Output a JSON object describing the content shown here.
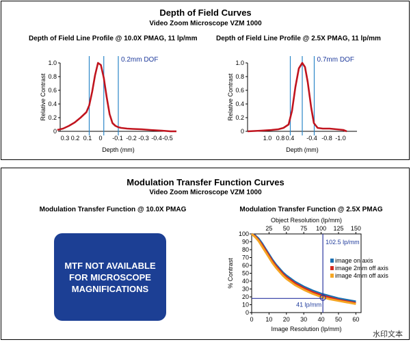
{
  "top": {
    "title": "Depth of Field Curves",
    "subtitle": "Video Zoom Microscope VZM 1000"
  },
  "bottom": {
    "title": "Modulation Transfer Function Curves",
    "subtitle": "Video Zoom Microscope VZM 1000"
  },
  "mtf_message": "MTF NOT AVAILABLE FOR MICROSCOPE MAGNIFICATIONS",
  "watermark": "水印文本",
  "colors": {
    "dof_curve": "#c0141e",
    "dof_lines": "#2a86c8",
    "box": "#1c3f94",
    "marker": "#2a35a0"
  },
  "chart_data": [
    {
      "type": "line",
      "title": "Depth of Field Line Profile @ 10.0X PMAG, 11 lp/mm",
      "xlabel": "Depth (mm)",
      "ylabel": "Relative Contrast",
      "x_ticks": [
        "0.3",
        "0.2",
        "0.1",
        "0",
        "-0.1",
        "-0.2",
        "-0.3",
        "-0.4",
        "-0.5"
      ],
      "y_ticks": [
        "0",
        "0.2",
        "0.4",
        "0.6",
        "0.8",
        "1.0"
      ],
      "xlim": [
        0.3,
        -0.5
      ],
      "ylim": [
        0,
        1.0
      ],
      "annotation": "0.2mm DOF",
      "dof_lines_x": [
        0.1,
        0.0,
        -0.1
      ],
      "series": [
        {
          "x": [
            0.32,
            0.28,
            0.24,
            0.2,
            0.16,
            0.12,
            0.1,
            0.08,
            0.06,
            0.04,
            0.02,
            0.0,
            -0.02,
            -0.04,
            -0.06,
            -0.08,
            -0.1,
            -0.12,
            -0.16,
            -0.2,
            -0.26,
            -0.32,
            -0.4,
            -0.46,
            -0.5
          ],
          "y": [
            0.02,
            0.04,
            0.08,
            0.13,
            0.2,
            0.28,
            0.38,
            0.58,
            0.82,
            1.0,
            0.97,
            0.78,
            0.5,
            0.25,
            0.12,
            0.08,
            0.06,
            0.05,
            0.04,
            0.035,
            0.03,
            0.02,
            0.01,
            0.0,
            0.0
          ]
        }
      ]
    },
    {
      "type": "line",
      "title": "Depth of Field Line Profile @ 2.5X PMAG, 11 lp/mm",
      "xlabel": "Depth (mm)",
      "ylabel": "Relative Contrast",
      "x_ticks": [
        "1.0",
        "0.8",
        "0.4",
        "-0.4",
        "-0.8",
        "-1.0"
      ],
      "y_ticks": [
        "0",
        "0.2",
        "0.4",
        "0.6",
        "0.8",
        "1.0"
      ],
      "xlim": [
        1.6,
        -1.6
      ],
      "ylim": [
        0,
        1.0
      ],
      "annotation": "0.7mm DOF",
      "dof_lines_x": [
        0.35,
        0.0,
        -0.35
      ],
      "series": [
        {
          "x": [
            1.6,
            1.2,
            0.9,
            0.7,
            0.55,
            0.4,
            0.3,
            0.2,
            0.1,
            0.0,
            -0.08,
            -0.16,
            -0.26,
            -0.34,
            -0.45,
            -0.6,
            -0.8,
            -1.0,
            -1.2,
            -1.3
          ],
          "y": [
            0.0,
            0.01,
            0.02,
            0.03,
            0.05,
            0.1,
            0.3,
            0.65,
            0.92,
            1.0,
            0.94,
            0.72,
            0.35,
            0.12,
            0.05,
            0.04,
            0.04,
            0.03,
            0.02,
            0.0
          ]
        }
      ]
    },
    {
      "type": "line",
      "title": "Modulation Transfer Function @ 2.5X PMAG",
      "xlabel": "Image Resolution (lp/mm)",
      "ylabel": "% Contrast",
      "x2label": "Object Resolution (lp/mm)",
      "x_ticks": [
        "0",
        "10",
        "20",
        "30",
        "40",
        "50",
        "60"
      ],
      "x2_ticks": [
        "25",
        "50",
        "75",
        "100",
        "125",
        "150"
      ],
      "y_ticks": [
        "0",
        "10",
        "20",
        "30",
        "40",
        "50",
        "60",
        "70",
        "80",
        "90",
        "100"
      ],
      "xlim": [
        0,
        63
      ],
      "ylim": [
        0,
        100
      ],
      "legend_position": "right",
      "annotations": {
        "top": "102.5 lp/mm",
        "bottom": "41 lp/mm"
      },
      "marker": {
        "x": 41,
        "y": 19
      },
      "series": [
        {
          "name": "image on axis",
          "color": "#1a6fb0",
          "x": [
            0,
            2,
            4,
            6,
            8,
            10,
            12,
            14,
            16,
            18,
            20,
            25,
            30,
            35,
            40,
            45,
            50,
            55,
            60
          ],
          "y": [
            100,
            98,
            94,
            88,
            81,
            74,
            67,
            61,
            56,
            51,
            47,
            39,
            33,
            28,
            24,
            21,
            18,
            16,
            14
          ]
        },
        {
          "name": "image 2mm off axis",
          "color": "#d62a1e",
          "x": [
            0,
            2,
            4,
            6,
            8,
            10,
            12,
            14,
            16,
            18,
            20,
            25,
            30,
            35,
            40,
            45,
            50,
            55,
            60
          ],
          "y": [
            100,
            97,
            92,
            86,
            79,
            72,
            65,
            59,
            54,
            49,
            45,
            37,
            31,
            26,
            22,
            19,
            16,
            14,
            12
          ]
        },
        {
          "name": "image 4mm off axis",
          "color": "#f5a623",
          "x": [
            0,
            2,
            4,
            6,
            8,
            10,
            12,
            14,
            16,
            18,
            20,
            25,
            30,
            35,
            40,
            45,
            50,
            55,
            60
          ],
          "y": [
            100,
            96,
            91,
            84,
            77,
            70,
            63,
            57,
            52,
            47,
            43,
            35,
            29,
            24,
            20,
            17,
            15,
            13,
            11
          ]
        }
      ]
    }
  ]
}
